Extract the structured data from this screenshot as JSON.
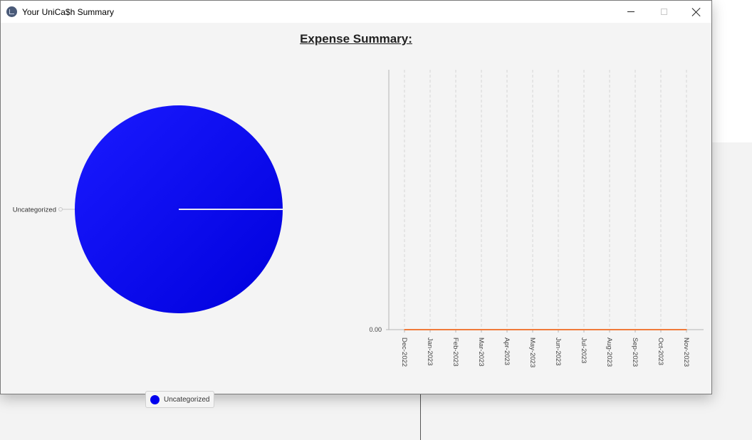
{
  "window": {
    "title": "Your UniCa$h Summary",
    "controls": [
      "minimize",
      "maximize",
      "close"
    ]
  },
  "heading": "Expense Summary:",
  "chart_data": [
    {
      "type": "pie",
      "slices": [
        {
          "label": "Uncategorized",
          "value": 1,
          "color": "#0000ee"
        }
      ],
      "legend": [
        "Uncategorized"
      ],
      "legend_position": "bottom"
    },
    {
      "type": "line",
      "categories": [
        "Dec-2022",
        "Jan-2023",
        "Feb-2023",
        "Mar-2023",
        "Apr-2023",
        "May-2023",
        "Jun-2023",
        "Jul-2023",
        "Aug-2023",
        "Sep-2023",
        "Oct-2023",
        "Nov-2023"
      ],
      "series": [
        {
          "values": [
            0,
            0,
            0,
            0,
            0,
            0,
            0,
            0,
            0,
            0,
            0,
            0
          ],
          "color": "#f07a3a"
        }
      ],
      "y_tick_labels": [
        "0.00"
      ],
      "grid": "vertical-dashed"
    }
  ]
}
